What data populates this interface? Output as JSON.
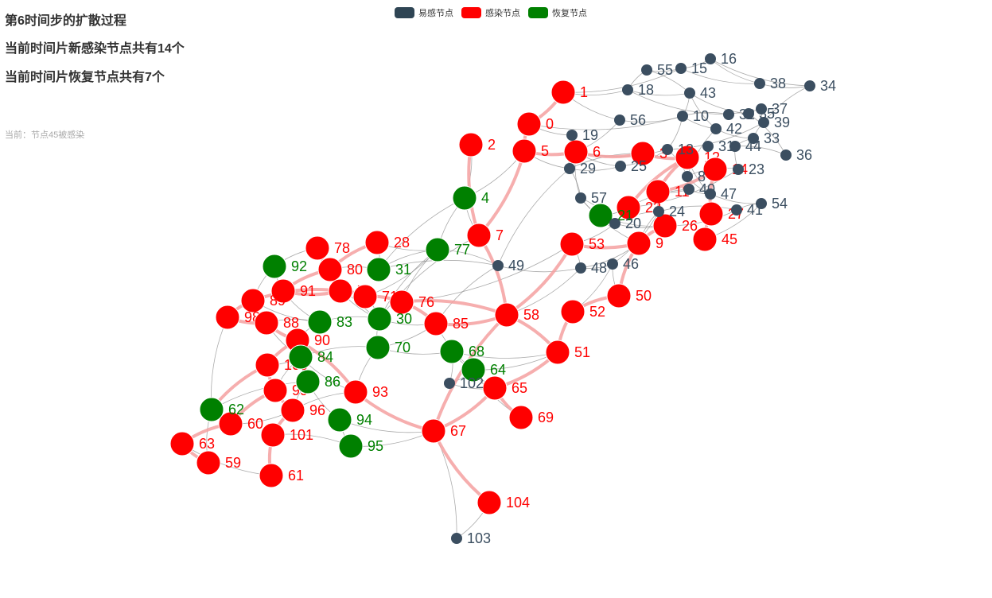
{
  "header": {
    "title": "第6时间步的扩散过程",
    "new_infected": "当前时间片新感染节点共有14个",
    "new_recovered": "当前时间片恢复节点共有7个",
    "current_event": "当前：节点45被感染"
  },
  "legend": [
    {
      "label": "易感节点",
      "color": "#2f4554",
      "icon": "swatch-susceptible-icon"
    },
    {
      "label": "感染节点",
      "color": "#ff0000",
      "icon": "swatch-infected-icon"
    },
    {
      "label": "恢复节点",
      "color": "#008000",
      "icon": "swatch-recovered-icon"
    }
  ],
  "colors": {
    "S": "#3b4e60",
    "I": "#ff0000",
    "R": "#008000",
    "edge": "#888888",
    "spread": "#f4a0a0"
  },
  "graph": {
    "nodes": [
      {
        "id": "1",
        "s": "I"
      },
      {
        "id": "0",
        "s": "I"
      },
      {
        "id": "2",
        "s": "I"
      },
      {
        "id": "5",
        "s": "I"
      },
      {
        "id": "6",
        "s": "I"
      },
      {
        "id": "4",
        "s": "R"
      },
      {
        "id": "7",
        "s": "I"
      },
      {
        "id": "9",
        "s": "I"
      },
      {
        "id": "45",
        "s": "I"
      },
      {
        "id": "50",
        "s": "I"
      },
      {
        "id": "52",
        "s": "I"
      },
      {
        "id": "51",
        "s": "I"
      },
      {
        "id": "58",
        "s": "I"
      },
      {
        "id": "53",
        "s": "I"
      },
      {
        "id": "65",
        "s": "I"
      },
      {
        "id": "69",
        "s": "I"
      },
      {
        "id": "67",
        "s": "I"
      },
      {
        "id": "104",
        "s": "I"
      },
      {
        "id": "85",
        "s": "I"
      },
      {
        "id": "76",
        "s": "I"
      },
      {
        "id": "28",
        "s": "I"
      },
      {
        "id": "78",
        "s": "I"
      },
      {
        "id": "80",
        "s": "I"
      },
      {
        "id": "91",
        "s": "I"
      },
      {
        "id": "79",
        "s": "I"
      },
      {
        "id": "71",
        "s": "I"
      },
      {
        "id": "89",
        "s": "I"
      },
      {
        "id": "98",
        "s": "I"
      },
      {
        "id": "88",
        "s": "I"
      },
      {
        "id": "90",
        "s": "I"
      },
      {
        "id": "100",
        "s": "I"
      },
      {
        "id": "99",
        "s": "I"
      },
      {
        "id": "93",
        "s": "I"
      },
      {
        "id": "96",
        "s": "I"
      },
      {
        "id": "60",
        "s": "I"
      },
      {
        "id": "63",
        "s": "I"
      },
      {
        "id": "59",
        "s": "I"
      },
      {
        "id": "101",
        "s": "I"
      },
      {
        "id": "61",
        "s": "I"
      },
      {
        "id": "26",
        "s": "I"
      },
      {
        "id": "27",
        "s": "I"
      },
      {
        "id": "12",
        "s": "I"
      },
      {
        "id": "11",
        "s": "I"
      },
      {
        "id": "3",
        "s": "I"
      },
      {
        "id": "14",
        "s": "I"
      },
      {
        "id": "22",
        "s": "I"
      },
      {
        "id": "92",
        "s": "R"
      },
      {
        "id": "31",
        "s": "R"
      },
      {
        "id": "77",
        "s": "R"
      },
      {
        "id": "30",
        "s": "R"
      },
      {
        "id": "70",
        "s": "R"
      },
      {
        "id": "83",
        "s": "R"
      },
      {
        "id": "84",
        "s": "R"
      },
      {
        "id": "86",
        "s": "R"
      },
      {
        "id": "94",
        "s": "R"
      },
      {
        "id": "95",
        "s": "R"
      },
      {
        "id": "62",
        "s": "R"
      },
      {
        "id": "68",
        "s": "R"
      },
      {
        "id": "64",
        "s": "R"
      },
      {
        "id": "21",
        "s": "R"
      },
      {
        "id": "16",
        "s": "S"
      },
      {
        "id": "15",
        "s": "S"
      },
      {
        "id": "55",
        "s": "S"
      },
      {
        "id": "18",
        "s": "S"
      },
      {
        "id": "43",
        "s": "S"
      },
      {
        "id": "38",
        "s": "S"
      },
      {
        "id": "34",
        "s": "S"
      },
      {
        "id": "37",
        "s": "S"
      },
      {
        "id": "35",
        "s": "S"
      },
      {
        "id": "32",
        "s": "S"
      },
      {
        "id": "56",
        "s": "S"
      },
      {
        "id": "10",
        "s": "S"
      },
      {
        "id": "39",
        "s": "S"
      },
      {
        "id": "42",
        "s": "S"
      },
      {
        "id": "19",
        "s": "S"
      },
      {
        "id": "33",
        "s": "S"
      },
      {
        "id": "31b",
        "label": "31",
        "s": "S"
      },
      {
        "id": "44",
        "s": "S"
      },
      {
        "id": "13",
        "s": "S"
      },
      {
        "id": "36",
        "s": "S"
      },
      {
        "id": "29",
        "s": "S"
      },
      {
        "id": "25",
        "s": "S"
      },
      {
        "id": "23",
        "s": "S"
      },
      {
        "id": "8",
        "s": "S"
      },
      {
        "id": "40",
        "s": "S"
      },
      {
        "id": "47",
        "s": "S"
      },
      {
        "id": "57",
        "s": "S"
      },
      {
        "id": "24",
        "s": "S"
      },
      {
        "id": "20",
        "s": "S"
      },
      {
        "id": "41",
        "s": "S"
      },
      {
        "id": "54",
        "s": "S"
      },
      {
        "id": "46",
        "s": "S"
      },
      {
        "id": "48",
        "s": "S"
      },
      {
        "id": "49",
        "s": "S"
      },
      {
        "id": "102",
        "s": "S"
      },
      {
        "id": "103",
        "s": "S"
      }
    ],
    "spread_edges": [
      [
        "0",
        "1"
      ],
      [
        "0",
        "5"
      ],
      [
        "2",
        "7"
      ],
      [
        "5",
        "6"
      ],
      [
        "6",
        "3"
      ],
      [
        "3",
        "12"
      ],
      [
        "12",
        "22"
      ],
      [
        "12",
        "11"
      ],
      [
        "11",
        "26"
      ],
      [
        "26",
        "9"
      ],
      [
        "9",
        "50"
      ],
      [
        "50",
        "52"
      ],
      [
        "52",
        "51"
      ],
      [
        "51",
        "58"
      ],
      [
        "58",
        "7"
      ],
      [
        "7",
        "5"
      ],
      [
        "58",
        "53"
      ],
      [
        "53",
        "9"
      ],
      [
        "58",
        "76"
      ],
      [
        "76",
        "71"
      ],
      [
        "71",
        "79"
      ],
      [
        "79",
        "89"
      ],
      [
        "89",
        "98"
      ],
      [
        "98",
        "88"
      ],
      [
        "88",
        "90"
      ],
      [
        "90",
        "100"
      ],
      [
        "100",
        "99"
      ],
      [
        "99",
        "60"
      ],
      [
        "60",
        "63"
      ],
      [
        "63",
        "59"
      ],
      [
        "99",
        "96"
      ],
      [
        "96",
        "101"
      ],
      [
        "101",
        "61"
      ],
      [
        "58",
        "67"
      ],
      [
        "67",
        "104"
      ],
      [
        "67",
        "65"
      ],
      [
        "65",
        "69"
      ],
      [
        "85",
        "76"
      ],
      [
        "28",
        "80"
      ],
      [
        "80",
        "91"
      ],
      [
        "91",
        "79"
      ],
      [
        "78",
        "80"
      ],
      [
        "93",
        "90"
      ],
      [
        "100",
        "62"
      ],
      [
        "14",
        "27"
      ],
      [
        "27",
        "45"
      ],
      [
        "11",
        "14"
      ],
      [
        "65",
        "51"
      ],
      [
        "93",
        "67"
      ],
      [
        "85",
        "58"
      ]
    ],
    "plain_edges": [
      [
        "1",
        "18"
      ],
      [
        "1",
        "56"
      ],
      [
        "0",
        "19"
      ],
      [
        "5",
        "29"
      ],
      [
        "6",
        "25"
      ],
      [
        "6",
        "13"
      ],
      [
        "6",
        "56"
      ],
      [
        "29",
        "25"
      ],
      [
        "25",
        "13"
      ],
      [
        "13",
        "10"
      ],
      [
        "10",
        "43"
      ],
      [
        "43",
        "55"
      ],
      [
        "55",
        "15"
      ],
      [
        "15",
        "16"
      ],
      [
        "18",
        "43"
      ],
      [
        "16",
        "38"
      ],
      [
        "38",
        "34"
      ],
      [
        "34",
        "39"
      ],
      [
        "37",
        "35"
      ],
      [
        "35",
        "32"
      ],
      [
        "32",
        "10"
      ],
      [
        "42",
        "33"
      ],
      [
        "33",
        "44"
      ],
      [
        "44",
        "23"
      ],
      [
        "23",
        "14"
      ],
      [
        "36",
        "44"
      ],
      [
        "36",
        "35"
      ],
      [
        "8",
        "40"
      ],
      [
        "40",
        "47"
      ],
      [
        "47",
        "54"
      ],
      [
        "54",
        "41"
      ],
      [
        "41",
        "24"
      ],
      [
        "24",
        "20"
      ],
      [
        "20",
        "57"
      ],
      [
        "57",
        "29"
      ],
      [
        "57",
        "21"
      ],
      [
        "21",
        "22"
      ],
      [
        "48",
        "46"
      ],
      [
        "46",
        "24"
      ],
      [
        "49",
        "48"
      ],
      [
        "49",
        "77"
      ],
      [
        "49",
        "31"
      ],
      [
        "48",
        "53"
      ],
      [
        "102",
        "64"
      ],
      [
        "102",
        "68"
      ],
      [
        "102",
        "65"
      ],
      [
        "103",
        "104"
      ],
      [
        "103",
        "67"
      ],
      [
        "4",
        "5"
      ],
      [
        "4",
        "2"
      ],
      [
        "4",
        "7"
      ],
      [
        "4",
        "77"
      ],
      [
        "77",
        "31"
      ],
      [
        "77",
        "30"
      ],
      [
        "77",
        "76"
      ],
      [
        "31",
        "28"
      ],
      [
        "31",
        "80"
      ],
      [
        "92",
        "91"
      ],
      [
        "92",
        "89"
      ],
      [
        "30",
        "83"
      ],
      [
        "30",
        "85"
      ],
      [
        "30",
        "70"
      ],
      [
        "70",
        "84"
      ],
      [
        "70",
        "68"
      ],
      [
        "68",
        "64"
      ],
      [
        "64",
        "65"
      ],
      [
        "64",
        "51"
      ],
      [
        "84",
        "86"
      ],
      [
        "86",
        "94"
      ],
      [
        "94",
        "95"
      ],
      [
        "95",
        "101"
      ],
      [
        "86",
        "62"
      ],
      [
        "83",
        "88"
      ],
      [
        "83",
        "90"
      ],
      [
        "84",
        "93"
      ],
      [
        "70",
        "93"
      ],
      [
        "30",
        "71"
      ],
      [
        "56",
        "10"
      ],
      [
        "19",
        "29"
      ],
      [
        "13",
        "39"
      ],
      [
        "18",
        "32"
      ],
      [
        "43",
        "42"
      ],
      [
        "42",
        "8"
      ],
      [
        "8",
        "47"
      ],
      [
        "22",
        "23"
      ],
      [
        "3",
        "29"
      ],
      [
        "1",
        "15"
      ],
      [
        "0",
        "10"
      ],
      [
        "57",
        "9"
      ],
      [
        "20",
        "26"
      ],
      [
        "48",
        "9"
      ],
      [
        "46",
        "50"
      ],
      [
        "53",
        "20"
      ],
      [
        "52",
        "46"
      ],
      [
        "49",
        "85"
      ],
      [
        "7",
        "30"
      ],
      [
        "76",
        "53"
      ],
      [
        "58",
        "48"
      ],
      [
        "4",
        "31"
      ],
      [
        "29",
        "49"
      ],
      [
        "6",
        "57"
      ],
      [
        "28",
        "77"
      ],
      [
        "79",
        "30"
      ],
      [
        "98",
        "62"
      ],
      [
        "89",
        "83"
      ],
      [
        "91",
        "83"
      ],
      [
        "80",
        "30"
      ],
      [
        "78",
        "92"
      ],
      [
        "71",
        "77"
      ],
      [
        "84",
        "99"
      ],
      [
        "86",
        "96"
      ],
      [
        "94",
        "67"
      ],
      [
        "95",
        "67"
      ],
      [
        "62",
        "59"
      ],
      [
        "60",
        "96"
      ],
      [
        "63",
        "61"
      ],
      [
        "100",
        "84"
      ],
      [
        "88",
        "84"
      ],
      [
        "90",
        "86"
      ],
      [
        "93",
        "96"
      ],
      [
        "70",
        "85"
      ],
      [
        "68",
        "51"
      ],
      [
        "64",
        "69"
      ],
      [
        "85",
        "64"
      ],
      [
        "16",
        "34"
      ],
      [
        "55",
        "18"
      ],
      [
        "37",
        "39"
      ],
      [
        "15",
        "38"
      ],
      [
        "43",
        "35"
      ],
      [
        "10",
        "42"
      ],
      [
        "39",
        "33"
      ],
      [
        "8",
        "13"
      ],
      [
        "40",
        "22"
      ],
      [
        "14",
        "8"
      ],
      [
        "11",
        "40"
      ],
      [
        "12",
        "47"
      ],
      [
        "26",
        "41"
      ],
      [
        "45",
        "54"
      ],
      [
        "24",
        "9"
      ],
      [
        "21",
        "26"
      ]
    ]
  }
}
